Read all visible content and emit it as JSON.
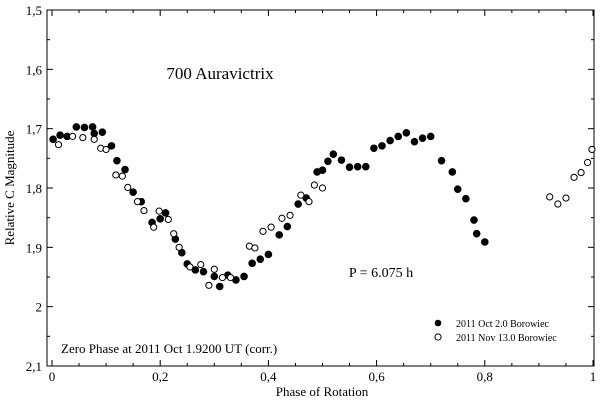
{
  "chart_data": {
    "type": "scatter",
    "title": "700 Auravictrix",
    "xlabel": "Phase of Rotation",
    "ylabel": "Relative C Magnitude",
    "xlim": [
      0,
      1
    ],
    "ylim": [
      1.5,
      2.1
    ],
    "y_inverted": true,
    "grid": false,
    "legend_position": "bottom-right",
    "x_ticks": [
      "0",
      "0,2",
      "0,4",
      "0,6",
      "0,8",
      "1"
    ],
    "x_tick_values": [
      0,
      0.2,
      0.4,
      0.6,
      0.8,
      1.0
    ],
    "y_ticks": [
      "1,5",
      "1,6",
      "1,7",
      "1,8",
      "1,9",
      "2",
      "2,1"
    ],
    "y_tick_values": [
      1.5,
      1.6,
      1.7,
      1.8,
      1.9,
      2.0,
      2.1
    ],
    "annotations": {
      "period": "P = 6.075 h",
      "zero_phase": "Zero Phase at 2011 Oct 1.9200 UT (corr.)"
    },
    "series": [
      {
        "name": "2011 Oct 2.0 Borowiec",
        "marker": "filled",
        "points": [
          [
            0.002,
            1.718
          ],
          [
            0.015,
            1.711
          ],
          [
            0.028,
            1.713
          ],
          [
            0.045,
            1.697
          ],
          [
            0.06,
            1.698
          ],
          [
            0.075,
            1.697
          ],
          [
            0.078,
            1.708
          ],
          [
            0.093,
            1.706
          ],
          [
            0.11,
            1.729
          ],
          [
            0.12,
            1.754
          ],
          [
            0.135,
            1.769
          ],
          [
            0.15,
            1.807
          ],
          [
            0.165,
            1.823
          ],
          [
            0.185,
            1.858
          ],
          [
            0.2,
            1.852
          ],
          [
            0.21,
            1.842
          ],
          [
            0.228,
            1.886
          ],
          [
            0.24,
            1.909
          ],
          [
            0.25,
            1.928
          ],
          [
            0.265,
            1.938
          ],
          [
            0.28,
            1.941
          ],
          [
            0.3,
            1.949
          ],
          [
            0.31,
            1.966
          ],
          [
            0.325,
            1.947
          ],
          [
            0.34,
            1.955
          ],
          [
            0.355,
            1.949
          ],
          [
            0.37,
            1.927
          ],
          [
            0.385,
            1.92
          ],
          [
            0.4,
            1.912
          ],
          [
            0.42,
            1.879
          ],
          [
            0.435,
            1.865
          ],
          [
            0.455,
            1.827
          ],
          [
            0.47,
            1.817
          ],
          [
            0.49,
            1.773
          ],
          [
            0.5,
            1.77
          ],
          [
            0.51,
            1.755
          ],
          [
            0.52,
            1.743
          ],
          [
            0.535,
            1.753
          ],
          [
            0.55,
            1.765
          ],
          [
            0.565,
            1.764
          ],
          [
            0.58,
            1.764
          ],
          [
            0.595,
            1.733
          ],
          [
            0.61,
            1.729
          ],
          [
            0.625,
            1.72
          ],
          [
            0.64,
            1.713
          ],
          [
            0.655,
            1.707
          ],
          [
            0.67,
            1.722
          ],
          [
            0.685,
            1.716
          ],
          [
            0.7,
            1.713
          ],
          [
            0.72,
            1.754
          ],
          [
            0.74,
            1.773
          ],
          [
            0.75,
            1.802
          ],
          [
            0.765,
            1.818
          ],
          [
            0.78,
            1.854
          ],
          [
            0.785,
            1.877
          ],
          [
            0.8,
            1.891
          ]
        ]
      },
      {
        "name": "2011 Nov 13.0 Borowiec",
        "marker": "open",
        "points": [
          [
            0.012,
            1.727
          ],
          [
            0.038,
            1.713
          ],
          [
            0.057,
            1.715
          ],
          [
            0.078,
            1.718
          ],
          [
            0.09,
            1.733
          ],
          [
            0.1,
            1.735
          ],
          [
            0.118,
            1.778
          ],
          [
            0.13,
            1.78
          ],
          [
            0.14,
            1.799
          ],
          [
            0.158,
            1.823
          ],
          [
            0.17,
            1.838
          ],
          [
            0.188,
            1.866
          ],
          [
            0.198,
            1.839
          ],
          [
            0.215,
            1.853
          ],
          [
            0.225,
            1.877
          ],
          [
            0.235,
            1.9
          ],
          [
            0.255,
            1.933
          ],
          [
            0.275,
            1.929
          ],
          [
            0.29,
            1.964
          ],
          [
            0.3,
            1.937
          ],
          [
            0.315,
            1.951
          ],
          [
            0.33,
            1.951
          ],
          [
            0.365,
            1.898
          ],
          [
            0.375,
            1.901
          ],
          [
            0.39,
            1.873
          ],
          [
            0.405,
            1.866
          ],
          [
            0.425,
            1.851
          ],
          [
            0.44,
            1.846
          ],
          [
            0.46,
            1.812
          ],
          [
            0.475,
            1.823
          ],
          [
            0.485,
            1.795
          ],
          [
            0.5,
            1.8
          ],
          [
            0.92,
            1.815
          ],
          [
            0.935,
            1.827
          ],
          [
            0.95,
            1.817
          ],
          [
            0.965,
            1.782
          ],
          [
            0.978,
            1.774
          ],
          [
            0.99,
            1.757
          ],
          [
            0.998,
            1.735
          ]
        ]
      }
    ]
  }
}
